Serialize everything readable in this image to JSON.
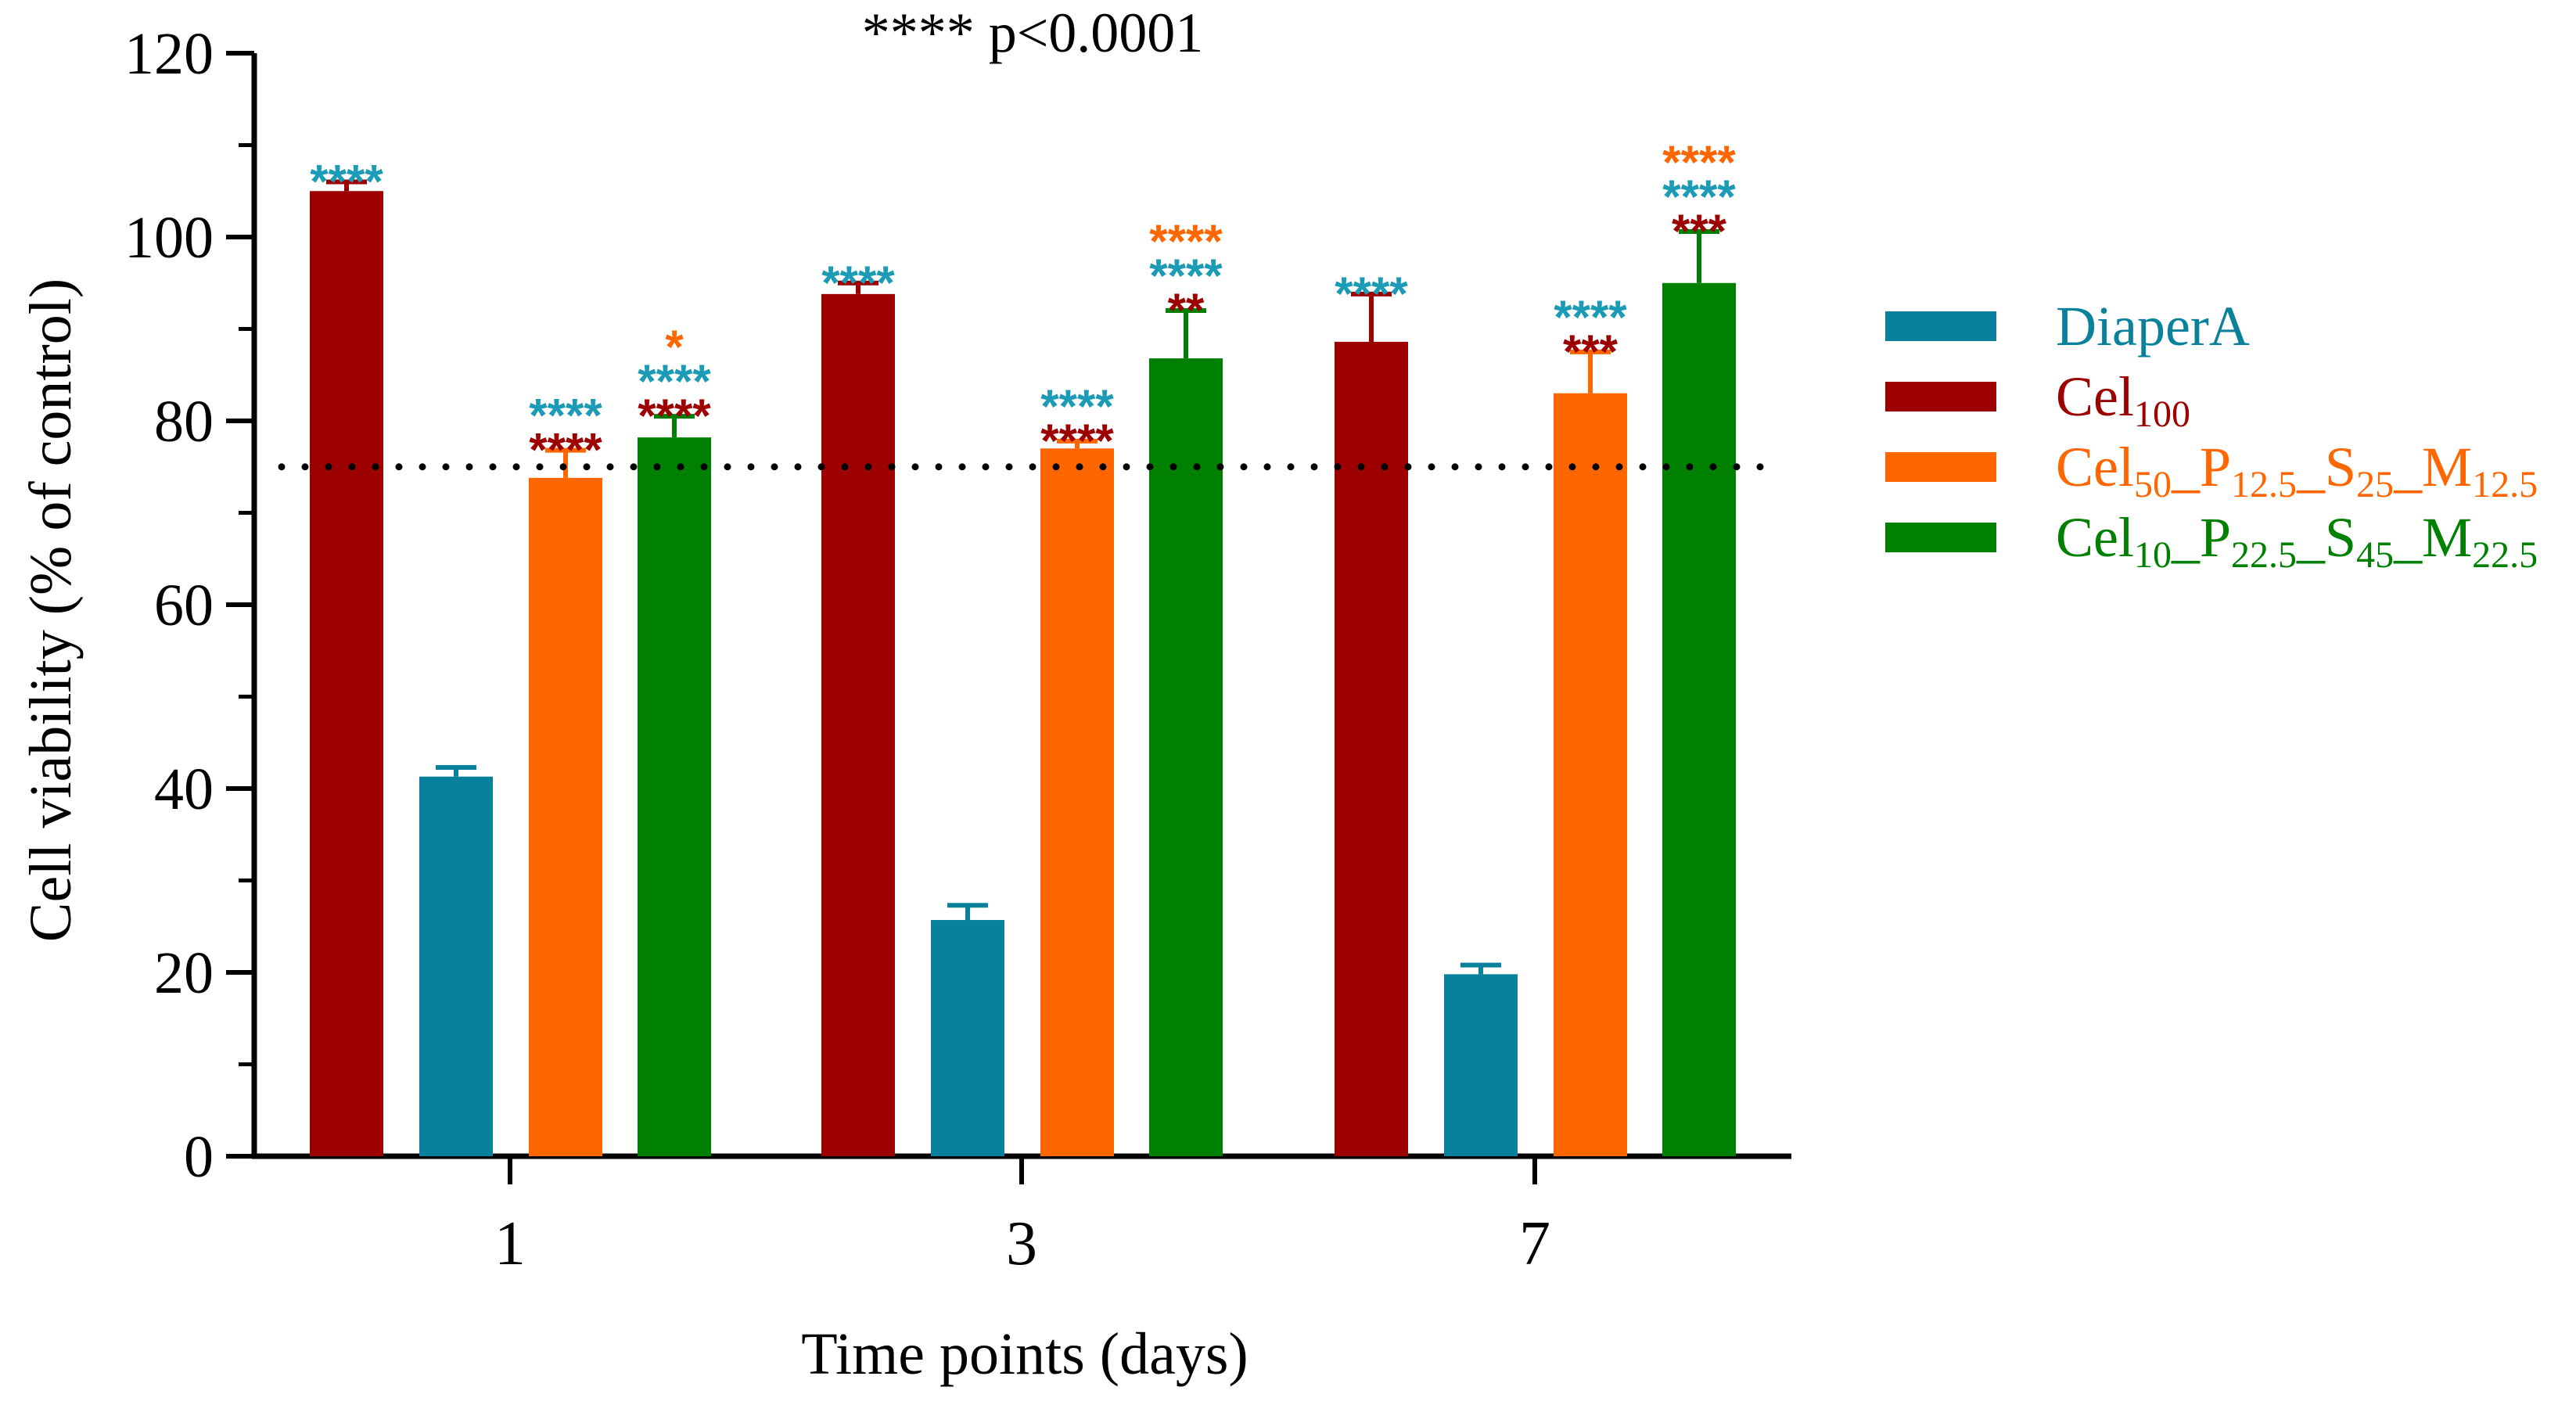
{
  "chart_data": {
    "type": "bar",
    "title": "**** p<0.0001",
    "xlabel": "Time points (days)",
    "ylabel": "Cell viability (% of control)",
    "ylim": [
      0,
      120
    ],
    "yticks": [
      0,
      20,
      40,
      60,
      80,
      100,
      120
    ],
    "categories": [
      "1",
      "3",
      "7"
    ],
    "reference_line": 75,
    "series": [
      {
        "name": "Cel100",
        "label_main": "Cel",
        "label_sub": "100",
        "color": "#9C0000",
        "values": [
          105,
          93.8,
          88.6
        ],
        "errors": [
          1.0,
          1.2,
          5.2
        ],
        "annotations": [
          [
            {
              "text": "****",
              "color": "#1B9BB5"
            }
          ],
          [
            {
              "text": "****",
              "color": "#1B9BB5"
            }
          ],
          [
            {
              "text": "****",
              "color": "#1B9BB5"
            }
          ]
        ]
      },
      {
        "name": "DiaperA",
        "label_main": "DiaperA",
        "label_sub": "",
        "color": "#09819C",
        "values": [
          41.3,
          25.7,
          19.8
        ],
        "errors": [
          1.0,
          1.6,
          1.0
        ],
        "annotations": [
          [],
          [],
          []
        ]
      },
      {
        "name": "Cel50_P12.5_S25_M12.5",
        "color": "#FF6600",
        "label_parts": [
          {
            "t": "Cel",
            "s": "50"
          },
          {
            "t": "_P",
            "s": "12.5"
          },
          {
            "t": "_S",
            "s": "25"
          },
          {
            "t": "_M",
            "s": "12.5"
          }
        ],
        "values": [
          73.8,
          77.0,
          83.0
        ],
        "errors": [
          3.0,
          0.8,
          4.5
        ],
        "annotations": [
          [
            {
              "text": "****",
              "color": "#9C0000"
            },
            {
              "text": "****",
              "color": "#1B9BB5"
            }
          ],
          [
            {
              "text": "****",
              "color": "#9C0000"
            },
            {
              "text": "****",
              "color": "#1B9BB5"
            }
          ],
          [
            {
              "text": "***",
              "color": "#9C0000"
            },
            {
              "text": "****",
              "color": "#1B9BB5"
            }
          ]
        ]
      },
      {
        "name": "Cel10_P22.5_S45_M22.5",
        "color": "#008000",
        "label_parts": [
          {
            "t": "Cel",
            "s": "10"
          },
          {
            "t": "_P",
            "s": "22.5"
          },
          {
            "t": "_S",
            "s": "45"
          },
          {
            "t": "_M",
            "s": "22.5"
          }
        ],
        "values": [
          78.2,
          86.8,
          95.0
        ],
        "errors": [
          2.3,
          5.2,
          5.6
        ],
        "annotations": [
          [
            {
              "text": "****",
              "color": "#9C0000"
            },
            {
              "text": "****",
              "color": "#1B9BB5"
            },
            {
              "text": "*",
              "color": "#FF6600"
            }
          ],
          [
            {
              "text": "**",
              "color": "#9C0000"
            },
            {
              "text": "****",
              "color": "#1B9BB5"
            },
            {
              "text": "****",
              "color": "#FF6600"
            }
          ],
          [
            {
              "text": "***",
              "color": "#9C0000"
            },
            {
              "text": "****",
              "color": "#1B9BB5"
            },
            {
              "text": "****",
              "color": "#FF6600"
            }
          ]
        ]
      }
    ],
    "legend": [
      {
        "name": "DiaperA",
        "color": "#09819C",
        "parts": [
          {
            "t": "DiaperA",
            "s": ""
          }
        ]
      },
      {
        "name": "Cel100",
        "color": "#9C0000",
        "parts": [
          {
            "t": "Cel",
            "s": "100"
          }
        ]
      },
      {
        "name": "Cel50_P12.5_S25_M12.5",
        "color": "#FF6600",
        "parts": [
          {
            "t": "Cel",
            "s": "50"
          },
          {
            "t": "_P",
            "s": "12.5"
          },
          {
            "t": "_S",
            "s": "25"
          },
          {
            "t": "_M",
            "s": "12.5"
          }
        ]
      },
      {
        "name": "Cel10_P22.5_S45_M22.5",
        "color": "#008000",
        "parts": [
          {
            "t": "Cel",
            "s": "10"
          },
          {
            "t": "_P",
            "s": "22.5"
          },
          {
            "t": "_S",
            "s": "45"
          },
          {
            "t": "_M",
            "s": "22.5"
          }
        ]
      }
    ],
    "legend_position": "right"
  }
}
